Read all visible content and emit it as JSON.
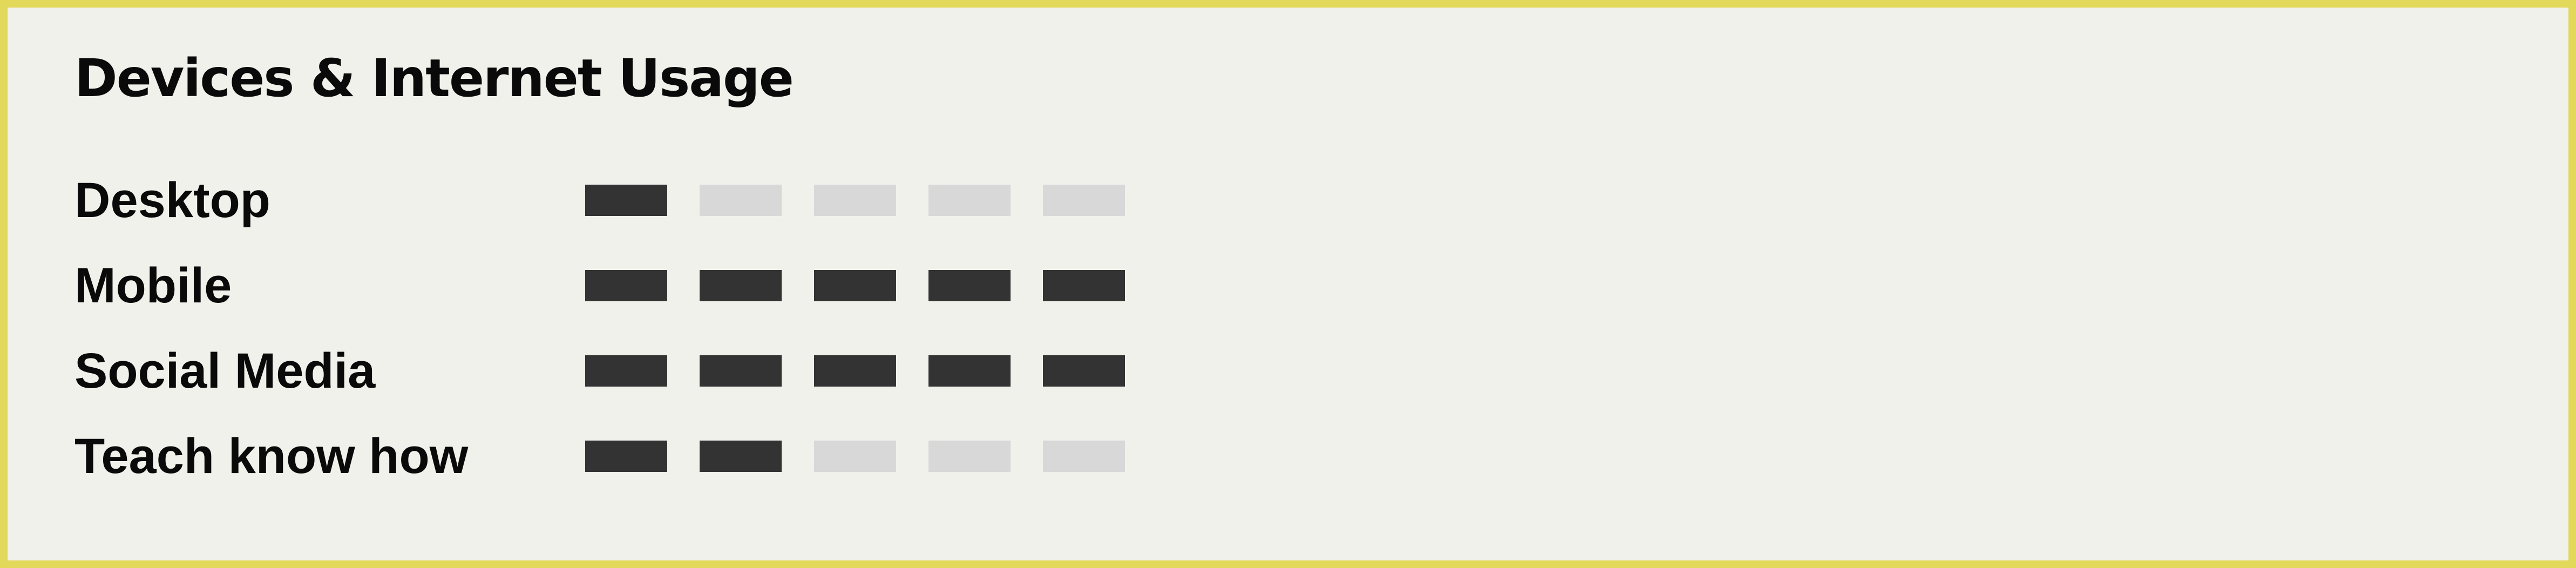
{
  "colors": {
    "frame_border": "#e2d85a",
    "card_background": "#f0f1eb",
    "segment_filled": "#333333",
    "segment_empty": "#d8d8d8",
    "text": "#0a0a0a"
  },
  "title": "Devices & Internet Usage",
  "scale_max": 5,
  "ratings": [
    {
      "label": "Desktop",
      "level": 1
    },
    {
      "label": "Mobile",
      "level": 5
    },
    {
      "label": "Social Media",
      "level": 5
    },
    {
      "label": "Teach know how",
      "level": 2
    }
  ]
}
